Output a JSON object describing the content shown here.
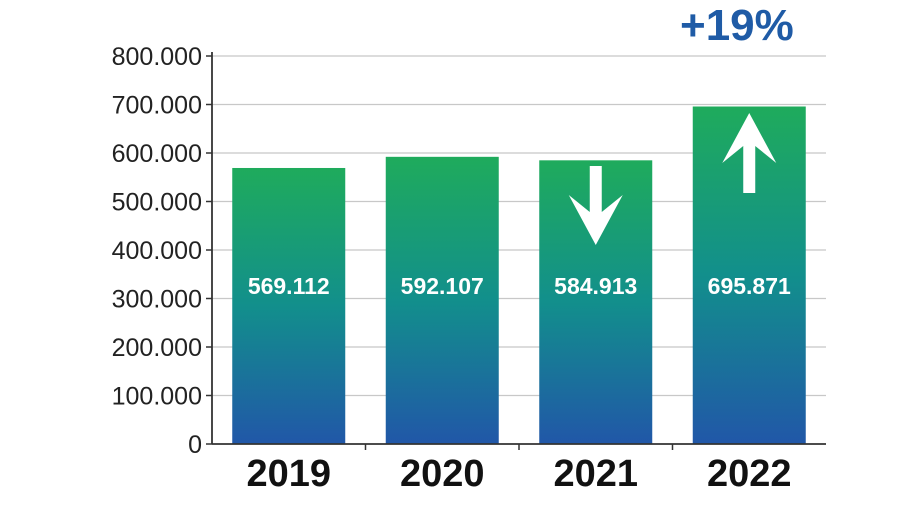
{
  "chart_data": {
    "type": "bar",
    "categories": [
      "2019",
      "2020",
      "2021",
      "2022"
    ],
    "values": [
      569112,
      592107,
      584913,
      695871
    ],
    "data_labels": [
      "569.112",
      "592.107",
      "584.913",
      "695.871"
    ],
    "ylim": [
      0,
      800000
    ],
    "yticks": [
      0,
      100000,
      200000,
      300000,
      400000,
      500000,
      600000,
      700000,
      800000
    ],
    "ytick_labels": [
      "0",
      "100.000",
      "200.000",
      "300.000",
      "400.000",
      "500.000",
      "600.000",
      "700.000",
      "800.000"
    ],
    "grid": true,
    "annotation": "+19%",
    "trend_arrows": [
      null,
      null,
      "down",
      "up"
    ],
    "colors": {
      "bar_top": "#1fab5c",
      "bar_mid": "#128f8c",
      "bar_bottom": "#2157a8",
      "annotation": "#1f5ba6",
      "grid": "#c8c8c8",
      "axis": "#333333"
    }
  }
}
